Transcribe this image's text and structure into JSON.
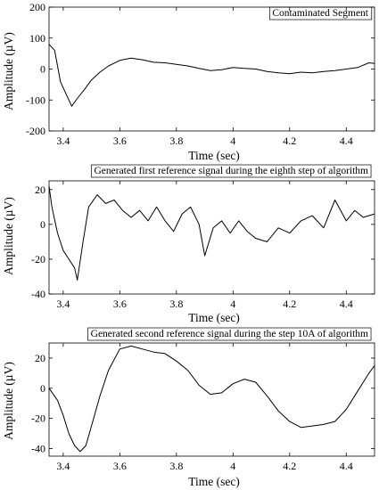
{
  "chart_data": [
    {
      "type": "line",
      "title": "Contaminated Segment",
      "xlabel": "Time (sec)",
      "ylabel": "Amplitude (µV)",
      "xlim": [
        3.35,
        4.5
      ],
      "ylim": [
        -200,
        200
      ],
      "xticks": [
        "3.4",
        "3.6",
        "3.8",
        "4",
        "4.2",
        "4.4"
      ],
      "xtick_values": [
        3.4,
        3.6,
        3.8,
        4.0,
        4.2,
        4.4
      ],
      "yticks": [
        "200",
        "100",
        "0",
        "-100",
        "-200"
      ],
      "ytick_values": [
        200,
        100,
        0,
        -100,
        -200
      ],
      "line_color": "#000000",
      "grid": false,
      "series": [
        {
          "x": [
            3.35,
            3.37,
            3.39,
            3.41,
            3.43,
            3.45,
            3.48,
            3.5,
            3.53,
            3.56,
            3.6,
            3.64,
            3.68,
            3.72,
            3.76,
            3.8,
            3.84,
            3.88,
            3.92,
            3.96,
            4.0,
            4.04,
            4.08,
            4.12,
            4.16,
            4.2,
            4.24,
            4.28,
            4.32,
            4.36,
            4.4,
            4.44,
            4.48,
            4.5
          ],
          "y": [
            80,
            60,
            -40,
            -80,
            -120,
            -95,
            -60,
            -35,
            -10,
            10,
            28,
            35,
            30,
            22,
            20,
            15,
            10,
            2,
            -5,
            -2,
            5,
            2,
            0,
            -8,
            -12,
            -15,
            -10,
            -12,
            -8,
            -5,
            0,
            5,
            20,
            18
          ]
        }
      ]
    },
    {
      "type": "line",
      "title": "Generated first reference signal during the eighth step of algorithm",
      "xlabel": "Time (sec)",
      "ylabel": "Amplitude (µV)",
      "xlim": [
        3.35,
        4.5
      ],
      "ylim": [
        -40,
        25
      ],
      "xticks": [
        "3.4",
        "3.6",
        "3.8",
        "4",
        "4.2",
        "4.4"
      ],
      "xtick_values": [
        3.4,
        3.6,
        3.8,
        4.0,
        4.2,
        4.4
      ],
      "yticks": [
        "20",
        "0",
        "-20",
        "-40"
      ],
      "ytick_values": [
        20,
        0,
        -20,
        -40
      ],
      "line_color": "#000000",
      "grid": false,
      "series": [
        {
          "x": [
            3.35,
            3.36,
            3.38,
            3.4,
            3.42,
            3.44,
            3.45,
            3.47,
            3.49,
            3.52,
            3.55,
            3.58,
            3.61,
            3.64,
            3.67,
            3.7,
            3.73,
            3.76,
            3.79,
            3.82,
            3.85,
            3.88,
            3.9,
            3.93,
            3.96,
            3.99,
            4.02,
            4.05,
            4.08,
            4.12,
            4.16,
            4.2,
            4.24,
            4.28,
            4.32,
            4.36,
            4.4,
            4.43,
            4.46,
            4.5
          ],
          "y": [
            22,
            10,
            -5,
            -15,
            -20,
            -25,
            -32,
            -10,
            10,
            17,
            12,
            14,
            8,
            4,
            8,
            2,
            10,
            2,
            -4,
            6,
            10,
            0,
            -18,
            -2,
            2,
            -5,
            2,
            -4,
            -8,
            -10,
            -2,
            -5,
            2,
            5,
            -2,
            14,
            2,
            8,
            4,
            6
          ]
        }
      ]
    },
    {
      "type": "line",
      "title": "Generated second reference signal during the step 10A of algorithm",
      "xlabel": "Time (sec)",
      "ylabel": "Amplitude (µV)",
      "xlim": [
        3.35,
        4.5
      ],
      "ylim": [
        -45,
        30
      ],
      "xticks": [
        "3.4",
        "3.6",
        "3.8",
        "4",
        "4.2",
        "4.4"
      ],
      "xtick_values": [
        3.4,
        3.6,
        3.8,
        4.0,
        4.2,
        4.4
      ],
      "yticks": [
        "20",
        "0",
        "-20",
        "-40"
      ],
      "ytick_values": [
        20,
        0,
        -20,
        -40
      ],
      "line_color": "#000000",
      "grid": false,
      "series": [
        {
          "x": [
            3.35,
            3.38,
            3.4,
            3.42,
            3.44,
            3.46,
            3.48,
            3.5,
            3.53,
            3.56,
            3.6,
            3.64,
            3.68,
            3.72,
            3.76,
            3.8,
            3.84,
            3.88,
            3.92,
            3.96,
            4.0,
            4.04,
            4.08,
            4.12,
            4.16,
            4.2,
            4.24,
            4.28,
            4.32,
            4.36,
            4.4,
            4.44,
            4.48,
            4.5
          ],
          "y": [
            0,
            -8,
            -18,
            -30,
            -38,
            -42,
            -38,
            -25,
            -5,
            12,
            26,
            28,
            26,
            24,
            23,
            18,
            12,
            2,
            -4,
            -3,
            3,
            6,
            4,
            -5,
            -15,
            -22,
            -26,
            -25,
            -24,
            -22,
            -14,
            -2,
            10,
            15
          ]
        }
      ]
    }
  ]
}
